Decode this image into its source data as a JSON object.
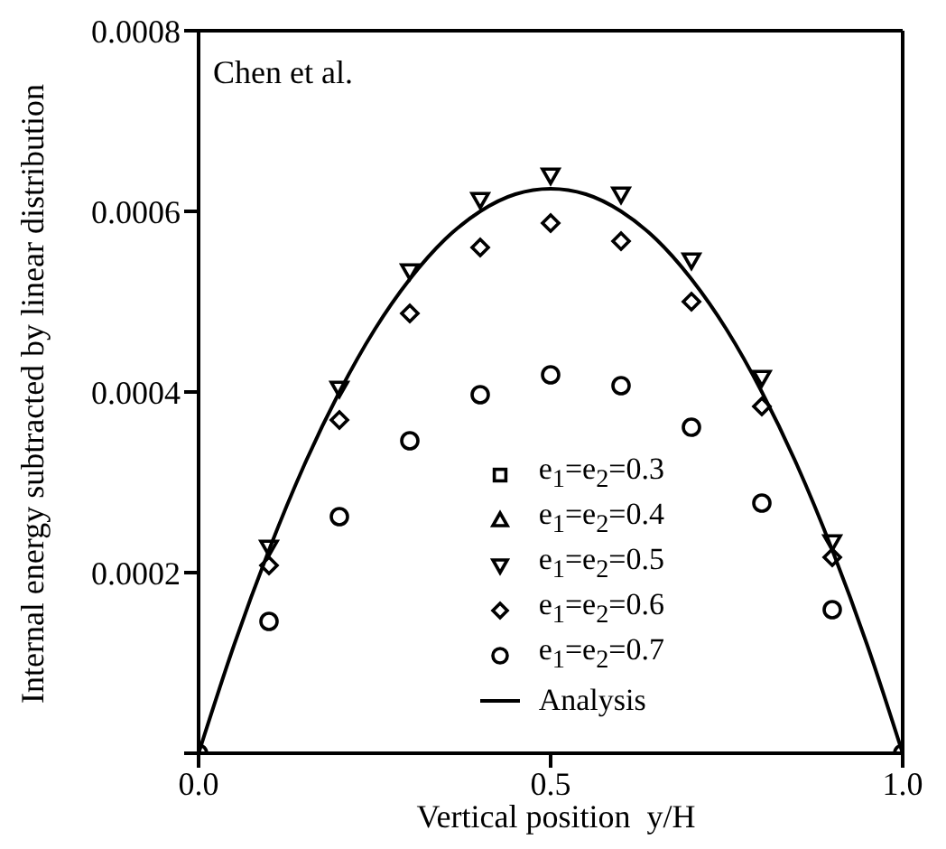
{
  "chart_data": {
    "type": "scatter",
    "xlabel": "Vertical position  y/H",
    "ylabel": "Internal energy subtracted by linear distribution",
    "annotations": [
      "Chen et al."
    ],
    "x": [
      0,
      0.1,
      0.2,
      0.3,
      0.4,
      0.5,
      0.6,
      0.7,
      0.8,
      0.9,
      1.0
    ],
    "xlim": [
      0,
      1
    ],
    "xticks": [
      {
        "value": 0,
        "label": "0.0"
      },
      {
        "value": 0.5,
        "label": "0.5"
      },
      {
        "value": 1,
        "label": "1.0"
      }
    ],
    "ylim": [
      0,
      0.0008
    ],
    "yticks": [
      {
        "value": 0,
        "label": null
      },
      0.0002,
      0.0004,
      0.0006,
      0.0008
    ],
    "legend": "bottom right",
    "series": [
      {
        "name": "e$_{1}$=e$_{2}$=0.3",
        "marker": "square",
        "color": "#000000",
        "values": [
          null,
          null,
          null,
          null,
          null,
          null,
          null,
          null,
          null,
          null,
          null
        ]
      },
      {
        "name": "e$_{1}$=e$_{2}$=0.4",
        "marker": "triangle",
        "color": "#000000",
        "values": [
          null,
          null,
          null,
          null,
          null,
          null,
          null,
          null,
          null,
          null,
          null
        ]
      },
      {
        "name": "e$_{1}$=e$_{2}$=0.5",
        "marker": "triangle-down",
        "color": "#000000",
        "values": [
          null,
          0.000228,
          0.000404,
          0.000534,
          0.000613,
          0.00064,
          0.000619,
          0.000546,
          0.000416,
          0.000234,
          null
        ]
      },
      {
        "name": "e$_{1}$=e$_{2}$=0.6",
        "marker": "diamond",
        "color": "#000000",
        "values": [
          null,
          0.000208,
          0.000369,
          0.000487,
          0.00056,
          0.000587,
          0.000567,
          0.0005,
          0.000384,
          0.000217,
          null
        ]
      },
      {
        "name": "e$_{1}$=e$_{2}$=0.7",
        "marker": "circle",
        "color": "#000000",
        "values": [
          0,
          0.000146,
          0.000262,
          0.000346,
          0.000397,
          0.000419,
          0.000407,
          0.000361,
          0.000277,
          0.000159,
          0
        ]
      },
      {
        "name": "Analysis",
        "type": "line",
        "marker": "none",
        "line_style": "solid",
        "color": "#000000",
        "x": [
          0,
          0.05,
          0.1,
          0.15,
          0.2,
          0.25,
          0.3,
          0.35,
          0.4,
          0.45,
          0.5,
          0.55,
          0.6,
          0.65,
          0.7,
          0.75,
          0.8,
          0.85,
          0.9,
          0.95,
          1.0
        ],
        "values": [
          0,
          0.000119,
          0.000225,
          0.000319,
          0.0004,
          0.000469,
          0.000525,
          0.000569,
          0.0006,
          0.000619,
          0.000625,
          0.000619,
          0.0006,
          0.000569,
          0.000525,
          0.000469,
          0.0004,
          0.000319,
          0.000225,
          0.000119,
          0
        ]
      }
    ]
  }
}
